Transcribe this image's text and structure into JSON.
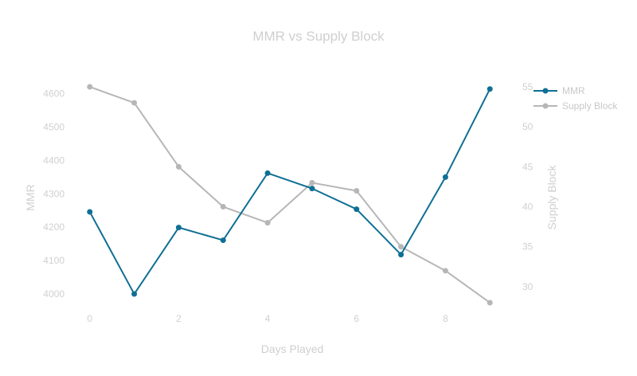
{
  "chart_data": {
    "type": "line",
    "title": "MMR vs Supply Block",
    "xlabel": "Days Played",
    "ylabel": "MMR",
    "y2label": "Supply Block",
    "x": [
      0,
      1,
      2,
      3,
      4,
      5,
      6,
      7,
      8,
      9
    ],
    "xlim": [
      -0.3,
      9.3
    ],
    "ylim": [
      3950,
      4630
    ],
    "y2lim": [
      27,
      55.4
    ],
    "xticks": [
      "0",
      "2",
      "4",
      "6",
      "8"
    ],
    "yticks": [
      "4000",
      "4100",
      "4200",
      "4300",
      "4400",
      "4500",
      "4600"
    ],
    "y2ticks": [
      "30",
      "35",
      "40",
      "45",
      "50",
      "55"
    ],
    "grid": false,
    "legend_position": "top-right",
    "series": [
      {
        "name": "MMR",
        "axis": "left",
        "color": "#0f6f94",
        "values": [
          4246,
          4000,
          4199,
          4161,
          4362,
          4316,
          4254,
          4118,
          4350,
          4614
        ]
      },
      {
        "name": "Supply Block",
        "axis": "right",
        "color": "#b6b6b6",
        "values": [
          55,
          53,
          45,
          40,
          38,
          43,
          42,
          35,
          32,
          28
        ]
      }
    ]
  }
}
